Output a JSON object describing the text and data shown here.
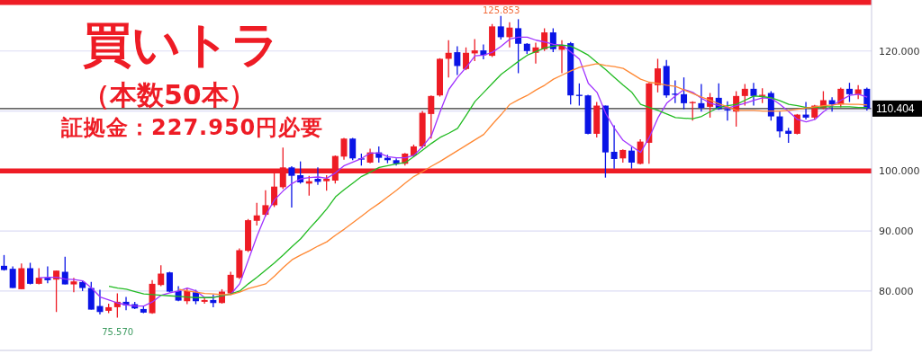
{
  "chart_data": {
    "type": "candlestick",
    "title": "買いトラ",
    "subtitle": "（本数50本）",
    "annotations": [
      "証拠金：227.950円必要",
      {
        "text": "125.853",
        "y": 125.853
      },
      {
        "text": "75.570",
        "y": 75.57
      }
    ],
    "categories": [
      null,
      null,
      null,
      null,
      null,
      null,
      null,
      null,
      null,
      null,
      null,
      null,
      null,
      null,
      null,
      null,
      null,
      null,
      null,
      null,
      null,
      null,
      null,
      null,
      null,
      null,
      null,
      null,
      null,
      null,
      null,
      null,
      null,
      null,
      null,
      null,
      null,
      null,
      null,
      null,
      null,
      null,
      null,
      null,
      null,
      null,
      null,
      null,
      null,
      null,
      null,
      null,
      null,
      null,
      null,
      null,
      null,
      null,
      null,
      null,
      null,
      null,
      null,
      null,
      null,
      null,
      null,
      null,
      null,
      null,
      null,
      null,
      null,
      null,
      null,
      null,
      null,
      null,
      null,
      null,
      null,
      null,
      null,
      null,
      null,
      null,
      null,
      null,
      null,
      null,
      null,
      null,
      null,
      null,
      null,
      null,
      null,
      null,
      null,
      null
    ],
    "ohlc": [
      [
        84.2,
        86.0,
        83.4,
        83.5
      ],
      [
        83.7,
        84.1,
        80.5,
        80.5
      ],
      [
        80.3,
        84.6,
        80.3,
        83.8
      ],
      [
        83.8,
        84.7,
        81.1,
        81.2
      ],
      [
        81.2,
        83.8,
        81.1,
        82.2
      ],
      [
        82.2,
        84.1,
        81.3,
        81.8
      ],
      [
        81.9,
        83.4,
        76.5,
        83.4
      ],
      [
        83.2,
        85.7,
        81.1,
        81.1
      ],
      [
        81.1,
        82.2,
        79.8,
        81.6
      ],
      [
        81.5,
        81.7,
        80.0,
        80.5
      ],
      [
        80.5,
        81.5,
        76.9,
        76.9
      ],
      [
        77.5,
        80.2,
        76.1,
        76.5
      ],
      [
        76.7,
        77.9,
        76.3,
        77.3
      ],
      [
        77.3,
        79.6,
        75.57,
        78.2
      ],
      [
        78.2,
        79.0,
        76.8,
        77.6
      ],
      [
        77.8,
        78.2,
        77.0,
        77.1
      ],
      [
        77.0,
        77.5,
        76.3,
        76.4
      ],
      [
        76.3,
        81.8,
        76.2,
        81.2
      ],
      [
        81.0,
        84.3,
        80.8,
        82.9
      ],
      [
        83.1,
        83.2,
        79.8,
        79.9
      ],
      [
        80.0,
        80.8,
        78.3,
        78.4
      ],
      [
        78.3,
        80.5,
        77.8,
        80.0
      ],
      [
        79.8,
        80.2,
        77.8,
        78.3
      ],
      [
        78.2,
        78.8,
        77.9,
        78.5
      ],
      [
        78.5,
        79.4,
        77.3,
        78.0
      ],
      [
        78.0,
        80.3,
        77.9,
        79.9
      ],
      [
        79.6,
        83.2,
        79.3,
        82.7
      ],
      [
        82.2,
        87.1,
        82.0,
        86.8
      ],
      [
        86.7,
        92.0,
        86.5,
        91.8
      ],
      [
        91.7,
        94.7,
        90.9,
        92.6
      ],
      [
        92.7,
        96.8,
        92.4,
        94.3
      ],
      [
        94.3,
        99.7,
        94.0,
        97.4
      ],
      [
        97.3,
        103.9,
        97.0,
        100.6
      ],
      [
        100.6,
        100.8,
        93.9,
        99.2
      ],
      [
        99.3,
        101.6,
        97.9,
        98.1
      ],
      [
        97.9,
        99.2,
        95.9,
        98.3
      ],
      [
        98.7,
        100.6,
        97.7,
        98.2
      ],
      [
        98.3,
        99.3,
        96.7,
        98.7
      ],
      [
        98.4,
        102.6,
        97.9,
        102.5
      ],
      [
        102.4,
        105.5,
        101.9,
        105.4
      ],
      [
        105.4,
        105.5,
        101.8,
        102.1
      ],
      [
        102.1,
        102.9,
        100.9,
        101.9
      ],
      [
        101.4,
        103.7,
        101.3,
        103.1
      ],
      [
        103.1,
        104.1,
        101.4,
        102.2
      ],
      [
        102.2,
        102.7,
        101.3,
        101.8
      ],
      [
        101.8,
        102.1,
        100.9,
        101.2
      ],
      [
        101.2,
        103.0,
        100.9,
        102.9
      ],
      [
        102.6,
        104.4,
        102.4,
        104.1
      ],
      [
        104.1,
        110.0,
        103.8,
        109.7
      ],
      [
        109.5,
        112.6,
        105.4,
        112.5
      ],
      [
        112.6,
        118.8,
        112.4,
        118.7
      ],
      [
        118.7,
        121.8,
        115.6,
        119.7
      ],
      [
        119.8,
        120.8,
        116.0,
        117.5
      ],
      [
        117.0,
        120.6,
        116.8,
        119.7
      ],
      [
        119.6,
        122.0,
        118.3,
        120.1
      ],
      [
        120.1,
        121.1,
        118.6,
        119.3
      ],
      [
        119.2,
        124.5,
        119.0,
        124.1
      ],
      [
        124.1,
        125.853,
        121.9,
        122.3
      ],
      [
        122.3,
        124.8,
        120.6,
        123.9
      ],
      [
        123.8,
        125.3,
        116.3,
        121.2
      ],
      [
        121.2,
        121.3,
        119.5,
        120.0
      ],
      [
        119.7,
        121.4,
        117.9,
        120.6
      ],
      [
        120.3,
        123.8,
        120.0,
        123.1
      ],
      [
        123.1,
        123.8,
        119.8,
        120.3
      ],
      [
        120.2,
        121.8,
        116.3,
        121.0
      ],
      [
        121.3,
        121.5,
        111.1,
        112.6
      ],
      [
        112.7,
        114.6,
        110.9,
        112.5
      ],
      [
        112.6,
        112.7,
        106.1,
        106.2
      ],
      [
        106.2,
        111.5,
        105.6,
        110.9
      ],
      [
        110.9,
        110.9,
        98.9,
        103.1
      ],
      [
        103.2,
        107.6,
        100.4,
        102.0
      ],
      [
        102.1,
        103.6,
        101.4,
        103.5
      ],
      [
        103.4,
        104.0,
        100.4,
        101.4
      ],
      [
        101.2,
        105.3,
        101.1,
        104.9
      ],
      [
        104.7,
        114.7,
        101.2,
        114.6
      ],
      [
        114.3,
        118.7,
        113.1,
        117.1
      ],
      [
        117.5,
        118.5,
        112.2,
        112.6
      ],
      [
        112.9,
        115.1,
        111.3,
        112.7
      ],
      [
        112.8,
        115.6,
        110.3,
        111.3
      ],
      [
        111.3,
        111.6,
        108.4,
        111.5
      ],
      [
        111.3,
        114.5,
        109.9,
        110.5
      ],
      [
        110.7,
        113.0,
        108.9,
        112.3
      ],
      [
        112.2,
        114.6,
        110.2,
        110.3
      ],
      [
        110.3,
        111.6,
        108.4,
        110.1
      ],
      [
        109.9,
        113.3,
        107.4,
        112.5
      ],
      [
        112.5,
        114.5,
        110.9,
        113.7
      ],
      [
        113.7,
        114.7,
        110.9,
        112.5
      ],
      [
        112.5,
        113.8,
        111.3,
        112.7
      ],
      [
        113.0,
        113.3,
        108.4,
        109.1
      ],
      [
        109.1,
        109.9,
        105.6,
        106.6
      ],
      [
        106.7,
        107.2,
        104.7,
        106.2
      ],
      [
        106.2,
        109.5,
        106.1,
        109.4
      ],
      [
        109.4,
        111.5,
        108.6,
        108.9
      ],
      [
        108.9,
        111.0,
        108.6,
        110.9
      ],
      [
        110.5,
        113.3,
        110.3,
        111.8
      ],
      [
        111.8,
        112.3,
        109.9,
        111.1
      ],
      [
        111.1,
        113.9,
        110.6,
        113.7
      ],
      [
        113.7,
        114.7,
        111.5,
        112.8
      ],
      [
        112.8,
        114.3,
        112.0,
        113.6
      ],
      [
        113.7,
        113.9,
        110.1,
        110.404
      ]
    ],
    "colors": [
      "#0a14e6",
      "#0a14e6",
      "#ee1c25",
      "#0a14e6",
      "#ee1c25",
      "#0a14e6",
      "#ee1c25",
      "#0a14e6",
      "#ee1c25",
      "#0a14e6",
      "#0a14e6",
      "#0a14e6",
      "#ee1c25",
      "#ee1c25",
      "#0a14e6",
      "#0a14e6",
      "#0a14e6",
      "#ee1c25",
      "#ee1c25",
      "#0a14e6",
      "#0a14e6",
      "#ee1c25",
      "#0a14e6",
      "#ee1c25",
      "#0a14e6",
      "#ee1c25",
      "#ee1c25",
      "#ee1c25",
      "#ee1c25",
      "#ee1c25",
      "#ee1c25",
      "#ee1c25",
      "#ee1c25",
      "#0a14e6",
      "#0a14e6",
      "#ee1c25",
      "#0a14e6",
      "#ee1c25",
      "#ee1c25",
      "#ee1c25",
      "#0a14e6",
      "#0a14e6",
      "#ee1c25",
      "#0a14e6",
      "#0a14e6",
      "#0a14e6",
      "#ee1c25",
      "#ee1c25",
      "#ee1c25",
      "#ee1c25",
      "#ee1c25",
      "#ee1c25",
      "#0a14e6",
      "#ee1c25",
      "#ee1c25",
      "#0a14e6",
      "#ee1c25",
      "#0a14e6",
      "#ee1c25",
      "#0a14e6",
      "#0a14e6",
      "#ee1c25",
      "#ee1c25",
      "#0a14e6",
      "#ee1c25",
      "#0a14e6",
      "#0a14e6",
      "#0a14e6",
      "#ee1c25",
      "#0a14e6",
      "#0a14e6",
      "#ee1c25",
      "#0a14e6",
      "#ee1c25",
      "#ee1c25",
      "#ee1c25",
      "#0a14e6",
      "#0a14e6",
      "#0a14e6",
      "#ee1c25",
      "#0a14e6",
      "#ee1c25",
      "#0a14e6",
      "#0a14e6",
      "#ee1c25",
      "#ee1c25",
      "#0a14e6",
      "#ee1c25",
      "#0a14e6",
      "#0a14e6",
      "#0a14e6",
      "#ee1c25",
      "#0a14e6",
      "#ee1c25",
      "#ee1c25",
      "#0a14e6",
      "#ee1c25",
      "#0a14e6",
      "#ee1c25",
      "#0a14e6"
    ],
    "series": [
      {
        "type": "line",
        "color": "#a033ff",
        "values": [
          null,
          null,
          null,
          null,
          82.2,
          82.3,
          82.3,
          82.0,
          81.9,
          81.7,
          80.5,
          79.0,
          78.5,
          78.0,
          77.7,
          77.5,
          77.5,
          78.2,
          79.3,
          79.7,
          80.0,
          80.5,
          80.0,
          78.9,
          79.0,
          79.2,
          79.5,
          81.2,
          85.2,
          89.2,
          92.7,
          95.2,
          96.7,
          97.9,
          98.7,
          98.9,
          99.0,
          98.8,
          99.7,
          100.9,
          101.5,
          102.1,
          103.0,
          103.0,
          102.4,
          102.2,
          102.2,
          102.6,
          104.1,
          105.9,
          109.9,
          113.6,
          115.6,
          117.3,
          119.2,
          119.3,
          119.8,
          120.8,
          122.0,
          122.3,
          122.3,
          121.8,
          121.5,
          121.1,
          121.0,
          119.8,
          118.6,
          114.6,
          113.1,
          109.6,
          107.1,
          105.1,
          104.1,
          103.1,
          105.6,
          108.9,
          111.3,
          112.5,
          113.6,
          113.1,
          112.1,
          111.3,
          110.9,
          110.5,
          110.9,
          111.3,
          111.8,
          112.2,
          112.1,
          111.1,
          109.9,
          108.6,
          108.2,
          108.6,
          109.9,
          110.9,
          111.8,
          112.6,
          112.8,
          112.3
        ]
      },
      {
        "type": "line",
        "color": "#22bb22",
        "values": [
          null,
          null,
          null,
          null,
          null,
          null,
          null,
          null,
          null,
          null,
          null,
          null,
          80.8,
          80.5,
          80.3,
          79.9,
          79.5,
          79.4,
          79.3,
          79.2,
          79.1,
          79.0,
          78.9,
          78.9,
          78.9,
          79.2,
          79.5,
          80.0,
          81.2,
          82.3,
          83.5,
          84.7,
          86.0,
          87.4,
          88.7,
          90.4,
          92.0,
          93.7,
          95.7,
          96.9,
          98.0,
          99.1,
          99.8,
          100.6,
          100.9,
          101.2,
          101.4,
          102.4,
          103.5,
          104.6,
          105.6,
          106.3,
          107.1,
          109.3,
          111.6,
          113.1,
          114.6,
          116.1,
          117.2,
          118.3,
          119.3,
          119.9,
          120.5,
          120.8,
          121.0,
          120.8,
          120.1,
          119.3,
          118.1,
          116.9,
          115.6,
          114.3,
          113.1,
          111.1,
          110.6,
          110.1,
          109.5,
          108.9,
          108.8,
          108.7,
          109.1,
          109.9,
          110.6,
          110.9,
          111.1,
          111.8,
          112.5,
          112.4,
          112.2,
          111.7,
          111.1,
          110.9,
          110.6,
          110.6,
          110.7,
          110.7,
          110.7,
          110.7,
          110.6,
          110.6
        ]
      },
      {
        "type": "line",
        "color": "#ff8833",
        "values": [
          null,
          null,
          null,
          null,
          null,
          null,
          null,
          null,
          null,
          null,
          null,
          null,
          null,
          null,
          null,
          null,
          null,
          null,
          null,
          null,
          80.3,
          80.0,
          79.8,
          79.6,
          79.5,
          79.4,
          79.4,
          79.8,
          80.4,
          80.8,
          81.2,
          82.5,
          83.9,
          85.2,
          86.0,
          86.7,
          87.5,
          88.2,
          89.3,
          90.3,
          91.4,
          92.5,
          93.6,
          94.6,
          95.7,
          96.8,
          98.0,
          99.1,
          99.9,
          100.8,
          101.6,
          102.5,
          103.4,
          104.3,
          105.2,
          106.1,
          107.8,
          109.4,
          111.1,
          111.9,
          112.6,
          113.5,
          114.3,
          115.3,
          116.0,
          116.7,
          117.3,
          117.6,
          117.9,
          117.6,
          117.4,
          117.1,
          116.2,
          115.3,
          114.8,
          114.6,
          114.3,
          114.1,
          113.5,
          112.9,
          112.3,
          111.8,
          111.2,
          110.7,
          110.1,
          110.1,
          110.1,
          110.0,
          110.0,
          110.0,
          110.1,
          110.3,
          110.5,
          110.7,
          110.9,
          111.0,
          111.2,
          111.1,
          111.1,
          111.0
        ]
      }
    ],
    "ylim": [
      70.1,
      128.5
    ],
    "yticks": [
      {
        "value": 80,
        "label": "80.000"
      },
      {
        "value": 90,
        "label": "90.000"
      },
      {
        "value": 100,
        "label": "100.000"
      },
      {
        "value": 110,
        "label": null
      },
      {
        "value": 120,
        "label": "120.000"
      }
    ],
    "ref_lines": [
      {
        "axis": "y",
        "value": 128.1,
        "color": "#ee1c25"
      },
      {
        "axis": "y",
        "value": 100,
        "color": "#ee1c25"
      },
      {
        "axis": "y",
        "value": 110.404,
        "label": "110.404",
        "color": "#333333"
      }
    ],
    "grid": "y",
    "tick_labels": "y",
    "marker": "none"
  }
}
